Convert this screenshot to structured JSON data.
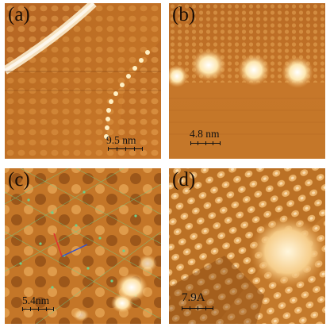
{
  "panels": [
    {
      "label": "(a)",
      "scale_text": "9.5 nm"
    },
    {
      "label": "(b)",
      "scale_text": "4.8 nm"
    },
    {
      "label": "(c)",
      "scale_text": "5.4nm"
    },
    {
      "label": "(d)",
      "scale_text": "7.9A"
    }
  ],
  "colors": {
    "stm_dark": "#8a4a14",
    "stm_mid": "#c97a2c",
    "stm_light": "#f1b460",
    "stm_bright": "#fff2c8",
    "lattice_green": "#6fcf8a",
    "vector_red": "#e03030",
    "vector_blue": "#3050d0"
  }
}
